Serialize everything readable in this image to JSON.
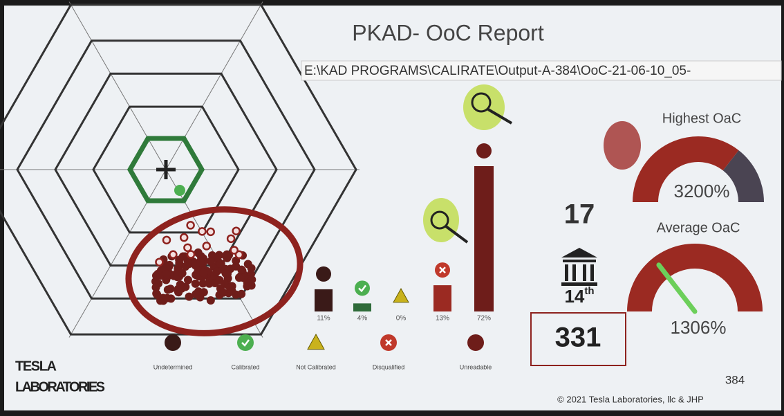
{
  "header": {
    "title": "PKAD- OoC Report",
    "path": "E:\\KAD PROGRAMS\\CALIRATE\\Output-A-384\\OoC-21-06-10_05-"
  },
  "bars": {
    "items": [
      {
        "name": "Undetermined",
        "value": 11,
        "value_label": "11%",
        "color": "#3a1a18"
      },
      {
        "name": "Calibrated",
        "value": 4,
        "value_label": "4%",
        "color": "#2f6b3a"
      },
      {
        "name": "Not Calibrated",
        "value": 0,
        "value_label": "0%",
        "color": "#c9b21c"
      },
      {
        "name": "Disqualified",
        "value": 13,
        "value_label": "13%",
        "color": "#9b2a22"
      },
      {
        "name": "Unreadable",
        "value": 72,
        "value_label": "72%",
        "color": "#6e1d1a"
      }
    ]
  },
  "gauges": [
    {
      "title": "Highest OaC",
      "value": 3200,
      "value_label": "3200%",
      "range": [
        0,
        4500
      ]
    },
    {
      "title": "Average OaC",
      "value": 1306,
      "value_label": "1306%",
      "range": [
        0,
        4500
      ]
    }
  ],
  "rank": {
    "count": "17",
    "place": "14",
    "suffix": "th",
    "total": "331"
  },
  "footer": {
    "logo_top": "TESLA",
    "logo_bottom": "LABORATORIES",
    "page": "384",
    "copyright": "© 2021 Tesla Laboratories, llc & JHP"
  }
}
